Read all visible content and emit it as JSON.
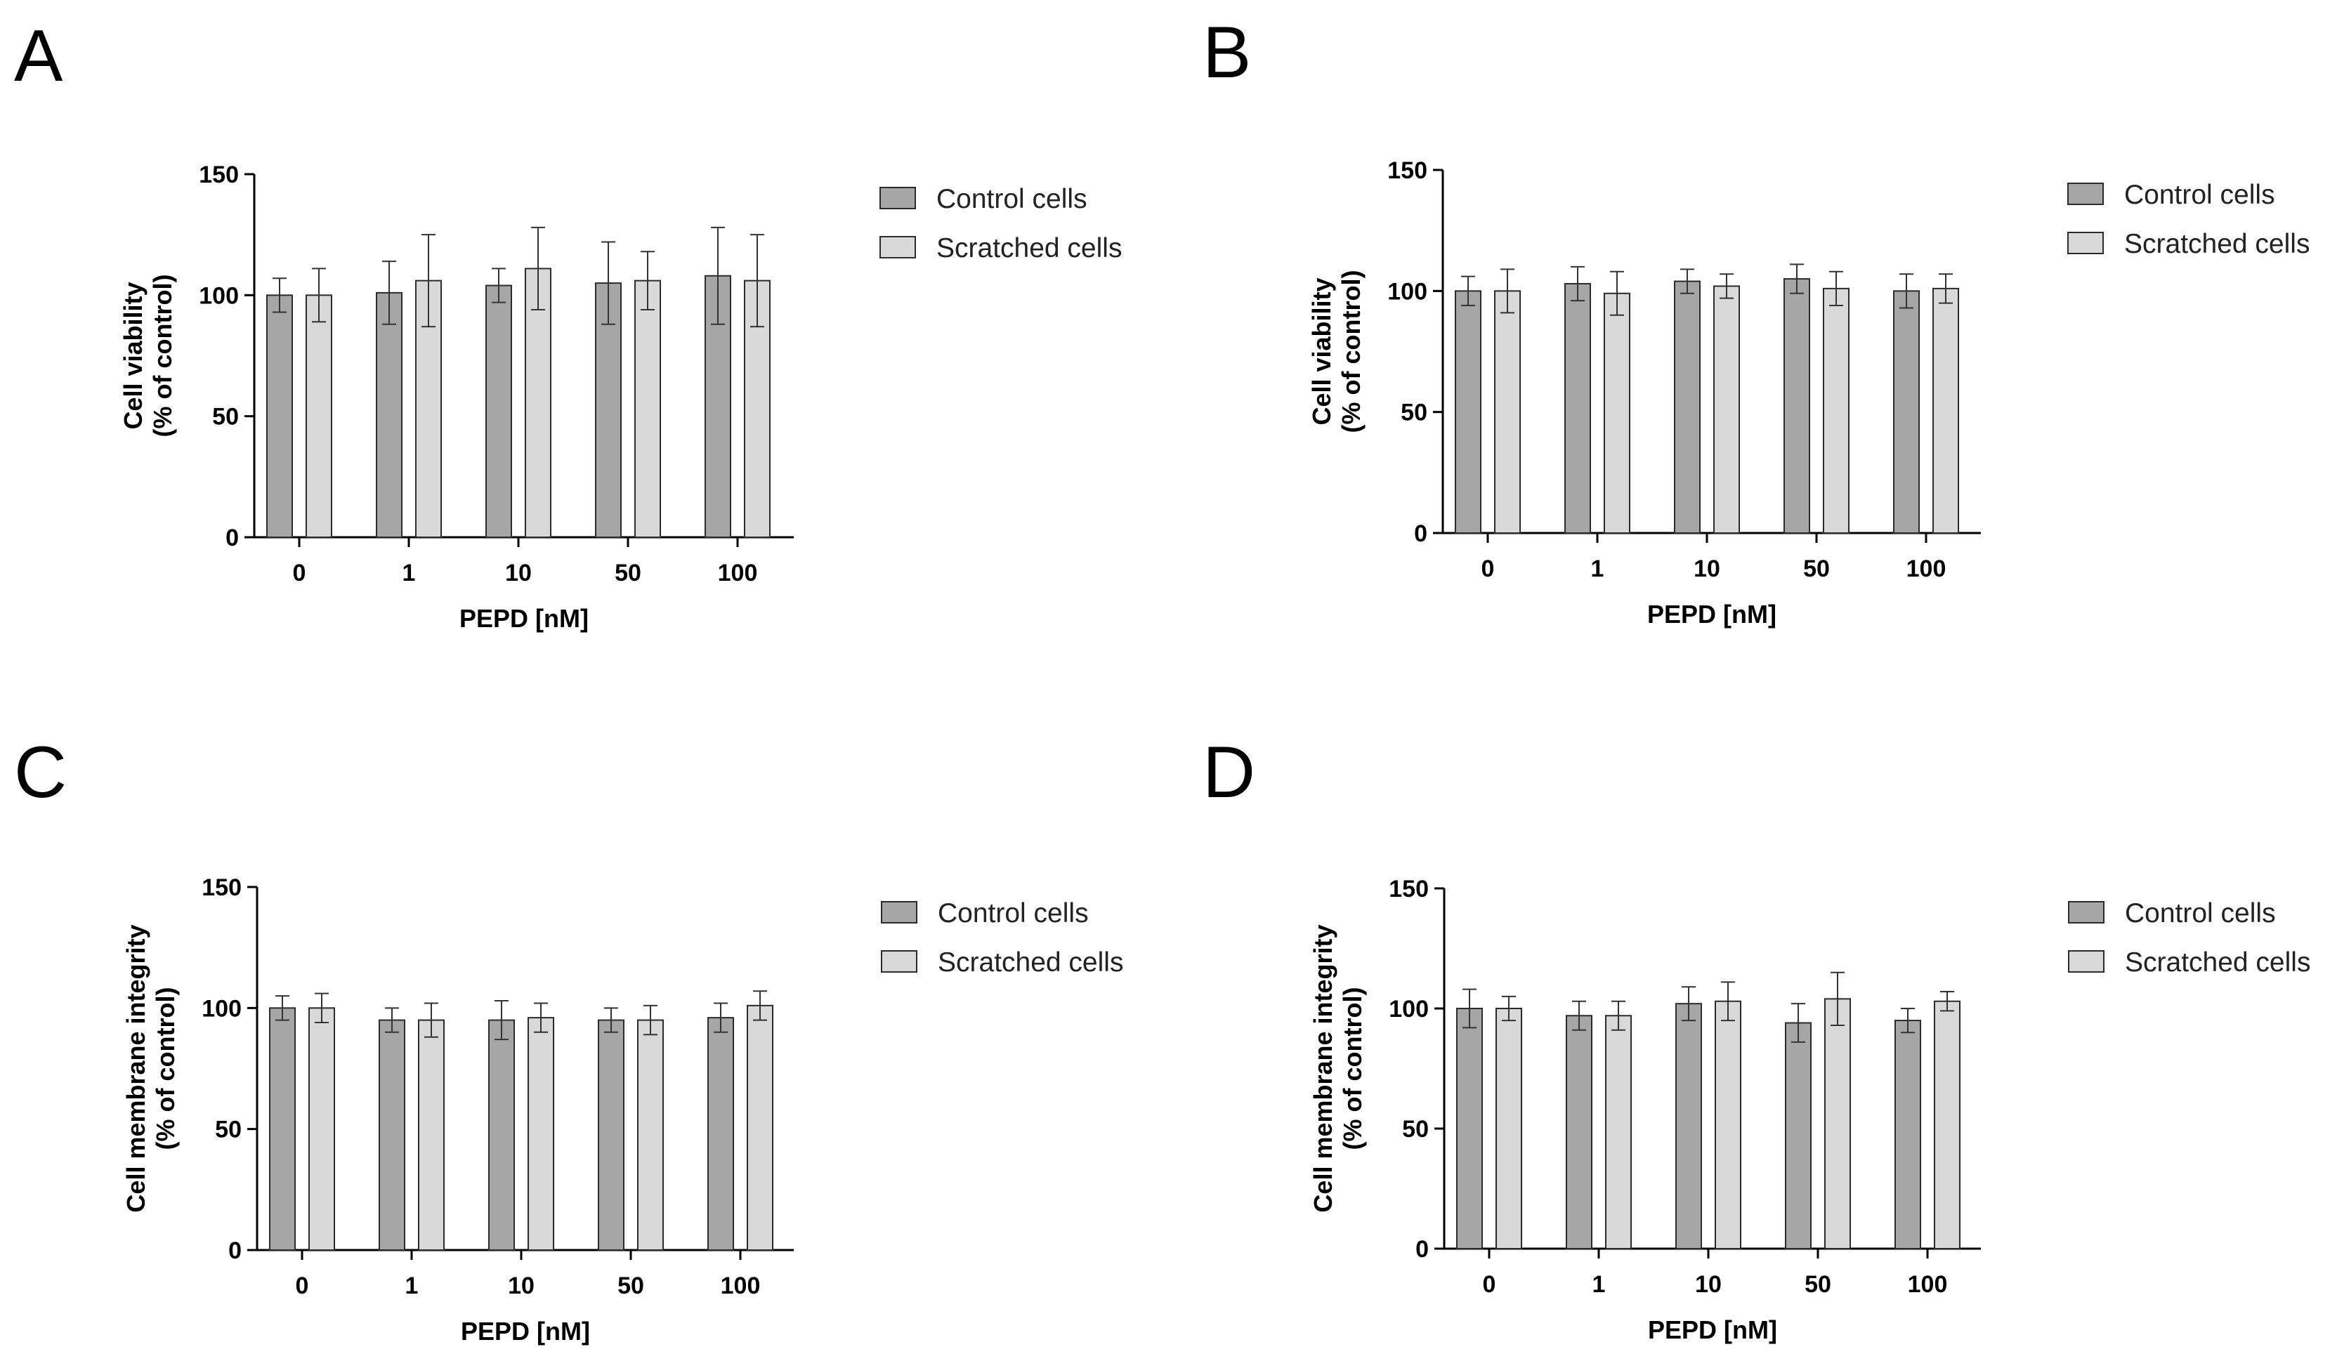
{
  "colors": {
    "control": "#a6a6a6",
    "scratched": "#d9d9d9",
    "stroke": "#2b2b2b"
  },
  "chart_data": [
    {
      "panel": "A",
      "type": "bar",
      "categories": [
        "0",
        "1",
        "10",
        "50",
        "100"
      ],
      "xlabel": "PEPD [nM]",
      "ylabel_line1": "Cell viability",
      "ylabel_line2": "(% of control)",
      "ylim": [
        0,
        150
      ],
      "yticks": [
        "0",
        "50",
        "100",
        "150"
      ],
      "series": [
        {
          "name": "Control cells",
          "values": [
            100,
            101,
            104,
            105,
            108
          ],
          "errors": [
            7,
            13,
            7,
            17,
            20
          ]
        },
        {
          "name": "Scratched cells",
          "values": [
            100,
            106,
            111,
            106,
            106
          ],
          "errors": [
            11,
            19,
            17,
            12,
            19
          ]
        }
      ]
    },
    {
      "panel": "B",
      "type": "bar",
      "categories": [
        "0",
        "1",
        "10",
        "50",
        "100"
      ],
      "xlabel": "PEPD [nM]",
      "ylabel_line1": "Cell viability",
      "ylabel_line2": "(% of control)",
      "ylim": [
        0,
        150
      ],
      "yticks": [
        "0",
        "50",
        "100",
        "150"
      ],
      "series": [
        {
          "name": "Control cells",
          "values": [
            100,
            103,
            104,
            105,
            100
          ],
          "errors": [
            6,
            7,
            5,
            6,
            7
          ]
        },
        {
          "name": "Scratched cells",
          "values": [
            100,
            99,
            102,
            101,
            101
          ],
          "errors": [
            9,
            9,
            5,
            7,
            6
          ]
        }
      ]
    },
    {
      "panel": "C",
      "type": "bar",
      "categories": [
        "0",
        "1",
        "10",
        "50",
        "100"
      ],
      "xlabel": "PEPD [nM]",
      "ylabel_line1": "Cell membrane integrity",
      "ylabel_line2": "(% of control)",
      "ylim": [
        0,
        150
      ],
      "yticks": [
        "0",
        "50",
        "100",
        "150"
      ],
      "series": [
        {
          "name": "Control cells",
          "values": [
            100,
            95,
            95,
            95,
            96
          ],
          "errors": [
            5,
            5,
            8,
            5,
            6
          ]
        },
        {
          "name": "Scratched cells",
          "values": [
            100,
            95,
            96,
            95,
            101
          ],
          "errors": [
            6,
            7,
            6,
            6,
            6
          ]
        }
      ]
    },
    {
      "panel": "D",
      "type": "bar",
      "categories": [
        "0",
        "1",
        "10",
        "50",
        "100"
      ],
      "xlabel": "PEPD [nM]",
      "ylabel_line1": "Cell membrane integrity",
      "ylabel_line2": "(% of control)",
      "ylim": [
        0,
        150
      ],
      "yticks": [
        "0",
        "50",
        "100",
        "150"
      ],
      "series": [
        {
          "name": "Control cells",
          "values": [
            100,
            97,
            102,
            94,
            95
          ],
          "errors": [
            8,
            6,
            7,
            8,
            5
          ]
        },
        {
          "name": "Scratched cells",
          "values": [
            100,
            97,
            103,
            104,
            103
          ],
          "errors": [
            5,
            6,
            8,
            11,
            4
          ]
        }
      ]
    }
  ]
}
